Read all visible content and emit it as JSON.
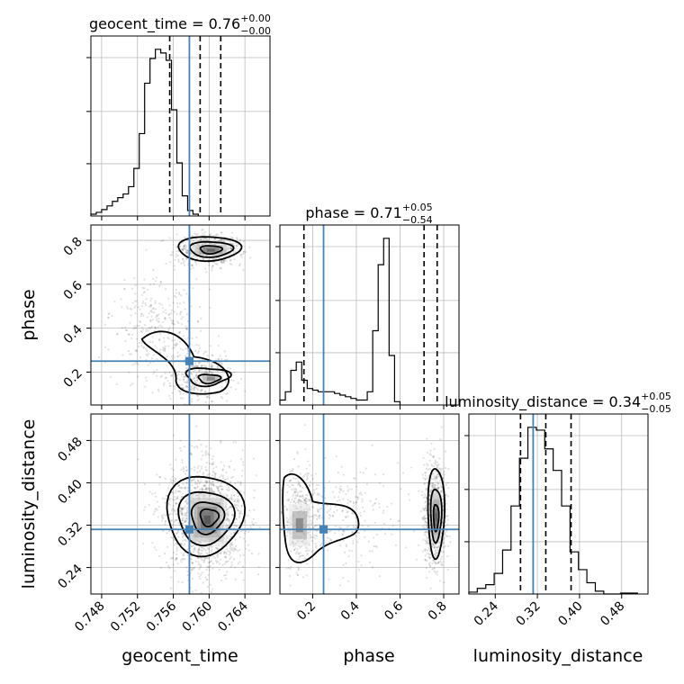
{
  "chart_data": {
    "type": "corner",
    "parameters": [
      "geocent_time",
      "phase",
      "luminosity_distance"
    ],
    "axis_labels": {
      "x": [
        "geocent_time",
        "phase",
        "luminosity_distance"
      ],
      "y_row2": "phase",
      "y_row3": "luminosity_distance"
    },
    "titles": [
      {
        "name": "geocent_time",
        "median": "0.76",
        "plus": "+0.00",
        "minus": "−0.00"
      },
      {
        "name": "phase",
        "median": "0.71",
        "plus": "+0.05",
        "minus": "−0.54"
      },
      {
        "name": "luminosity_distance",
        "median": "0.34",
        "plus": "+0.05",
        "minus": "−0.05"
      }
    ],
    "ranges": {
      "geocent_time": [
        0.7468,
        0.7668
      ],
      "phase": [
        0.05,
        0.87
      ],
      "luminosity_distance": [
        0.19,
        0.53
      ]
    },
    "ticks": {
      "geocent_time": [
        0.748,
        0.752,
        0.756,
        0.76,
        0.764
      ],
      "geocent_time_labels": [
        "0.748",
        "0.752",
        "0.756",
        "0.760",
        "0.764"
      ],
      "phase": [
        0.2,
        0.4,
        0.6,
        0.8
      ],
      "phase_labels": [
        "0.2",
        "0.4",
        "0.6",
        "0.8"
      ],
      "luminosity_distance": [
        0.24,
        0.32,
        0.4,
        0.48
      ],
      "luminosity_distance_labels": [
        "0.24",
        "0.32",
        "0.40",
        "0.48"
      ]
    },
    "truths": {
      "geocent_time": 0.7578,
      "phase": 0.25,
      "luminosity_distance": 0.312
    },
    "quantiles": {
      "geocent_time": [
        0.7556,
        0.759,
        0.7613
      ],
      "phase": [
        0.16,
        0.71,
        0.77
      ],
      "luminosity_distance": [
        0.288,
        0.336,
        0.384
      ]
    },
    "hist_geocent_time": {
      "edges_start": 0.7468,
      "bin_width": 0.0006,
      "values": [
        2,
        4,
        7,
        11,
        16,
        20,
        24,
        32,
        52,
        90,
        145,
        172,
        182,
        178,
        170,
        116,
        58,
        22,
        6,
        2
      ]
    },
    "hist_phase": {
      "edges_start": 0.05,
      "bin_width": 0.025,
      "values": [
        3,
        8,
        21,
        26,
        15,
        10,
        9,
        8,
        8,
        8,
        7,
        6,
        5,
        4,
        3,
        3,
        8,
        45,
        85,
        101,
        30,
        2
      ]
    },
    "hist_luminosity_distance": {
      "edges_start": 0.19,
      "bin_width": 0.016,
      "values": [
        2,
        6,
        10,
        22,
        47,
        94,
        145,
        178,
        175,
        155,
        132,
        94,
        45,
        26,
        12,
        3,
        0,
        0,
        1,
        1
      ]
    },
    "grid": true
  }
}
